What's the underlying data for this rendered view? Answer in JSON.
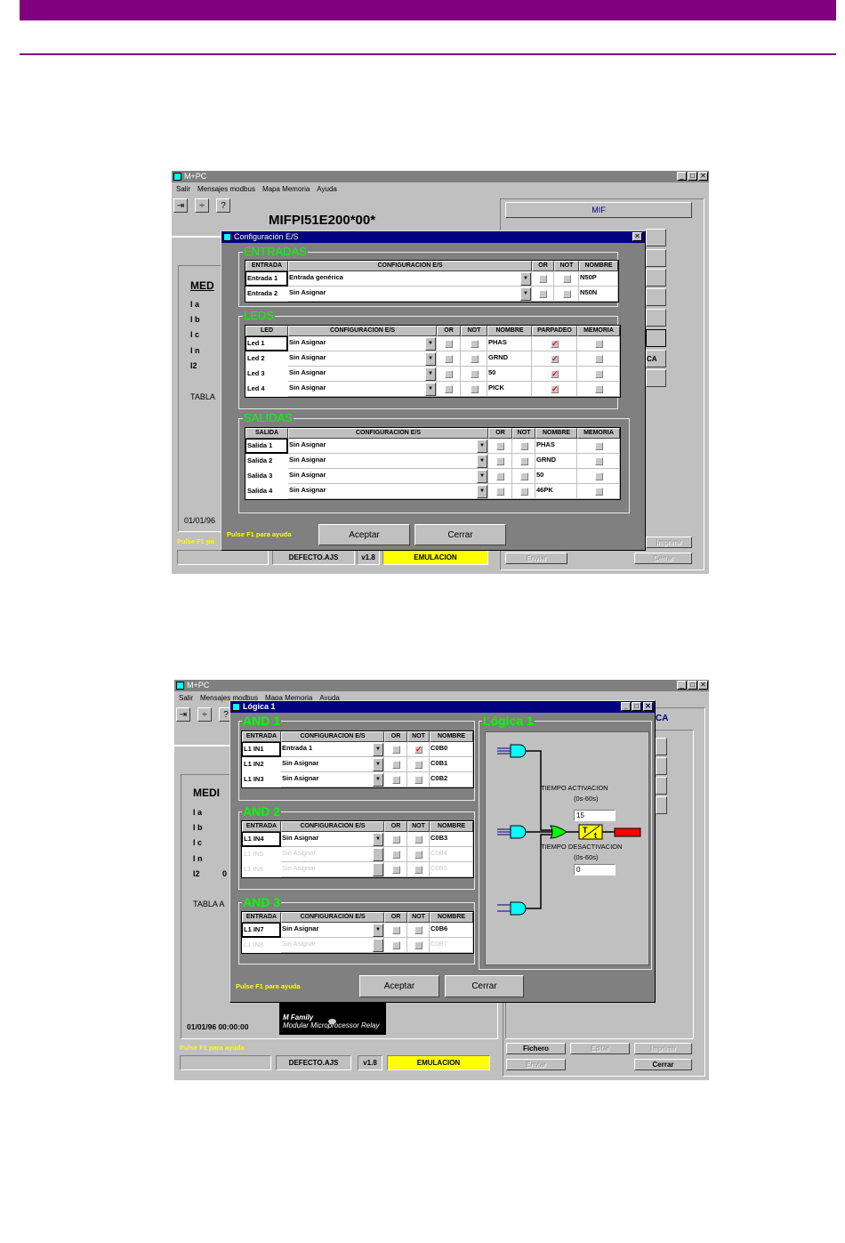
{
  "document": {
    "accent_color": "#800080"
  },
  "screenshot1": {
    "app_title": "M+PC",
    "menu": [
      "Salir",
      "Mensajes modbus",
      "Mapa Memoria",
      "Ayuda"
    ],
    "relay_model": "MIFPI51E200*00*",
    "right_header": "MIF",
    "ca_label": "CA",
    "background_labels": {
      "med": "MED",
      "ia": "I a",
      "ib": "I b",
      "ic": "I c",
      "in": "I n",
      "i2": "I2",
      "tabla": "TABLA",
      "date": "01/01/96"
    },
    "status_help": "Pulse F1 pa",
    "status_fields": {
      "file": "DEFECTO.AJS",
      "version": "v1.8",
      "mode": "EMULACION"
    },
    "buttons": {
      "imprimir": "Imprimir",
      "enviar": "Enviar",
      "cerrar": "Cerrar"
    },
    "dialog": {
      "title": "Configuración E/S",
      "help": "Pulse F1 para ayuda",
      "accept": "Aceptar",
      "close": "Cerrar",
      "entradas": {
        "label": "ENTRADAS",
        "headers": [
          "ENTRADA",
          "CONFIGURACIÓN E/S",
          "OR",
          "NOT",
          "NOMBRE"
        ],
        "rows": [
          {
            "cells": [
              "Entrada 1",
              "Entrada genérica",
              false,
              false,
              "N50P"
            ]
          },
          {
            "cells": [
              "Entrada 2",
              "Sin Asignar",
              false,
              false,
              "N50N"
            ]
          }
        ]
      },
      "leds": {
        "label": "LEDS",
        "headers": [
          "LED",
          "CONFIGURACIÓN E/S",
          "OR",
          "NOT",
          "NOMBRE",
          "PARPADEO",
          "MEMORIA"
        ],
        "rows": [
          {
            "cells": [
              "Led 1",
              "Sin Asignar",
              false,
              false,
              "PHAS",
              true,
              false
            ]
          },
          {
            "cells": [
              "Led 2",
              "Sin Asignar",
              false,
              false,
              "GRND",
              true,
              false
            ]
          },
          {
            "cells": [
              "Led 3",
              "Sin Asignar",
              false,
              false,
              "50",
              true,
              false
            ]
          },
          {
            "cells": [
              "Led 4",
              "Sin Asignar",
              false,
              false,
              "PICK",
              true,
              false
            ]
          }
        ]
      },
      "salidas": {
        "label": "SALIDAS",
        "headers": [
          "SALIDA",
          "CONFIGURACIÓN E/S",
          "OR",
          "NOT",
          "NOMBRE",
          "MEMORIA"
        ],
        "rows": [
          {
            "cells": [
              "Salida 1",
              "Sin Asignar",
              false,
              false,
              "PHAS",
              false
            ]
          },
          {
            "cells": [
              "Salida 2",
              "Sin Asignar",
              false,
              false,
              "GRND",
              false
            ]
          },
          {
            "cells": [
              "Salida 3",
              "Sin Asignar",
              false,
              false,
              "50",
              false
            ]
          },
          {
            "cells": [
              "Salida 4",
              "Sin Asignar",
              false,
              false,
              "46PK",
              false
            ]
          }
        ]
      }
    }
  },
  "screenshot2": {
    "app_title": "M+PC",
    "menu": [
      "Salir",
      "Mensajes modbus",
      "Mapa Memoria",
      "Ayuda"
    ],
    "ca_label": "CA",
    "background_labels": {
      "med": "MEDI",
      "ia": "I a",
      "ib": "I b",
      "ic": "I c",
      "in": "I n",
      "i2": "I2",
      "i2_value": "0",
      "tabla": "TABLA A",
      "date": "01/01/96 00:00:00"
    },
    "logo": {
      "line1": "M Family",
      "line2": "Modular Microprocessor Relay"
    },
    "status_help": "Pulse F1 para ayuda",
    "status_fields": {
      "file": "DEFECTO.AJS",
      "version": "v1.8",
      "mode": "EMULACION"
    },
    "buttons": {
      "fichero": "Fichero",
      "editar": "Editar",
      "imprimir": "Imprimir",
      "enviar": "Enviar",
      "cerrar": "Cerrar"
    },
    "dialog": {
      "title": "Lógica 1",
      "help": "Pulse F1 para ayuda",
      "accept": "Aceptar",
      "close": "Cerrar",
      "and1": {
        "label": "AND 1",
        "headers": [
          "ENTRADA",
          "CONFIGURACIÓN E/S",
          "OR",
          "NOT",
          "NOMBRE"
        ],
        "rows": [
          {
            "cells": [
              "L1 IN1",
              "Entrada 1",
              false,
              true,
              "C0B0"
            ]
          },
          {
            "cells": [
              "L1 IN2",
              "Sin Asignar",
              false,
              false,
              "C0B1"
            ]
          },
          {
            "cells": [
              "L1 IN3",
              "Sin Asignar",
              false,
              false,
              "C0B2"
            ]
          }
        ]
      },
      "and2": {
        "label": "AND 2",
        "headers": [
          "ENTRADA",
          "CONFIGURACIÓN E/S",
          "OR",
          "NOT",
          "NOMBRE"
        ],
        "rows": [
          {
            "cells": [
              "L1 IN4",
              "Sin Asignar",
              false,
              false,
              "C0B3"
            ]
          },
          {
            "cells": [
              "L1 IN5",
              "Sin Asignar",
              false,
              false,
              "C0B4"
            ],
            "disabled": true
          },
          {
            "cells": [
              "L1 IN6",
              "Sin Asignar",
              false,
              false,
              "C0B5"
            ],
            "disabled": true
          }
        ]
      },
      "and3": {
        "label": "AND 3",
        "headers": [
          "ENTRADA",
          "CONFIGURACIÓN E/S",
          "OR",
          "NOT",
          "NOMBRE"
        ],
        "rows": [
          {
            "cells": [
              "L1 IN7",
              "Sin Asignar",
              false,
              false,
              "C0B6"
            ]
          },
          {
            "cells": [
              "L1 IN8",
              "Sin Asignar",
              false,
              false,
              "C0B7"
            ],
            "disabled": true
          }
        ]
      },
      "logic": {
        "label": "Lógica 1",
        "activation_label": "TIEMPO ACTIVACION",
        "activation_range": "(0s-60s)",
        "activation_value": "15",
        "deactivation_label": "TIEMPO DESACTIVACION",
        "deactivation_range": "(0s-60s)",
        "deactivation_value": "0",
        "and_gate_color": "#00ffff",
        "or_gate_color": "#00ff00",
        "timer_color": "#ffff00",
        "output_color": "#ff0000"
      }
    }
  }
}
